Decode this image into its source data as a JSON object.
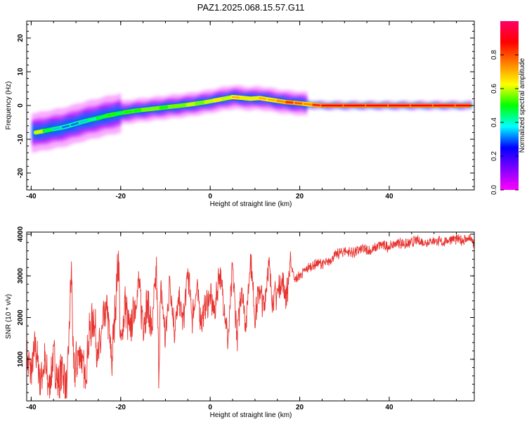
{
  "title": "PAZ1.2025.068.15.57.G11",
  "chart_data": [
    {
      "type": "heatmap",
      "xlabel": "Height of straight line (km)",
      "ylabel": "Frequency (Hz)",
      "xlim": [
        -41,
        59
      ],
      "ylim": [
        -25,
        25
      ],
      "x_ticks": [
        -40,
        -20,
        0,
        20,
        40
      ],
      "y_ticks": [
        -20,
        -10,
        0,
        10,
        20
      ],
      "ridge": {
        "x": [
          -39,
          -37,
          -35,
          -33,
          -31,
          -29,
          -27,
          -25,
          -23,
          -21,
          -19,
          -17,
          -15,
          -13,
          -11,
          -9,
          -7,
          -5,
          -3,
          -1,
          1,
          3,
          5,
          7,
          9,
          11,
          13,
          15,
          17,
          19,
          21,
          23,
          25,
          30,
          35,
          40,
          45,
          50,
          55,
          58
        ],
        "frequency": [
          -8,
          -7.5,
          -7,
          -6.5,
          -5.8,
          -5,
          -4.3,
          -3.7,
          -3,
          -2.5,
          -2,
          -1.6,
          -1.3,
          -1,
          -0.7,
          -0.4,
          -0.1,
          0.2,
          0.6,
          1,
          1.5,
          2,
          2.5,
          2.3,
          2,
          2.2,
          1.8,
          1.4,
          1,
          0.8,
          0.5,
          0.2,
          0,
          0,
          0,
          0,
          0,
          0,
          0,
          0
        ],
        "amplitude": [
          0.6,
          0.45,
          0.35,
          0.3,
          0.3,
          0.35,
          0.4,
          0.45,
          0.5,
          0.45,
          0.5,
          0.5,
          0.55,
          0.55,
          0.5,
          0.55,
          0.55,
          0.6,
          0.55,
          0.6,
          0.65,
          0.6,
          0.7,
          0.65,
          0.65,
          0.7,
          0.7,
          0.75,
          0.85,
          0.8,
          0.75,
          0.85,
          0.9,
          0.9,
          0.9,
          0.9,
          0.9,
          0.9,
          0.9,
          0.9
        ]
      },
      "colorbar": {
        "label": "Normalized spectral amplitude",
        "range": [
          0,
          1
        ],
        "ticks": [
          "0.0",
          "0.2",
          "0.4",
          "0.6",
          "0.8"
        ],
        "colors": [
          "#ff00ff",
          "#8000ff",
          "#0000ff",
          "#00ffff",
          "#00ff00",
          "#ffff00",
          "#ff8000",
          "#ff0000",
          "#ff0066"
        ]
      }
    },
    {
      "type": "line",
      "xlabel": "Height of straight line (km)",
      "ylabel": "SNR (10 * v/v)",
      "xlim": [
        -41,
        59
      ],
      "ylim": [
        0,
        4050
      ],
      "x_ticks": [
        -40,
        -20,
        0,
        20,
        40
      ],
      "y_ticks": [
        1000,
        2000,
        3000,
        4000
      ],
      "color": "#e8332f",
      "series": [
        {
          "x": [
            -41,
            -40,
            -39,
            -38,
            -37,
            -36,
            -35,
            -34,
            -33,
            -32,
            -31,
            -30.5,
            -30,
            -29,
            -28,
            -27,
            -26,
            -25,
            -24,
            -23,
            -22,
            -21,
            -20.5,
            -20,
            -19,
            -18,
            -17,
            -16,
            -15,
            -14,
            -13,
            -12,
            -11.5,
            -11,
            -10,
            -9,
            -8,
            -7,
            -6,
            -5,
            -4,
            -3,
            -2,
            -1,
            0,
            1,
            2,
            3,
            4,
            5,
            6,
            7,
            8,
            9,
            10,
            11,
            12,
            13,
            14,
            15,
            16,
            17,
            18,
            19,
            20,
            22,
            24,
            26,
            28,
            30,
            32,
            34,
            36,
            38,
            40,
            42,
            44,
            46,
            48,
            50,
            52,
            54,
            56,
            58,
            59
          ],
          "y": [
            1000,
            700,
            1300,
            500,
            900,
            300,
            1100,
            400,
            800,
            200,
            3200,
            600,
            900,
            1200,
            500,
            1600,
            2000,
            1000,
            1800,
            2200,
            900,
            2600,
            3500,
            1200,
            2400,
            1600,
            2200,
            2800,
            1900,
            2300,
            1700,
            3100,
            800,
            2700,
            1500,
            2900,
            1700,
            2400,
            1900,
            3100,
            2000,
            2700,
            1900,
            2300,
            2500,
            2100,
            3100,
            2400,
            1400,
            3200,
            1500,
            2800,
            1800,
            3500,
            2000,
            2700,
            2200,
            3300,
            2400,
            2600,
            2900,
            2500,
            3300,
            2900,
            3000,
            3200,
            3300,
            3300,
            3500,
            3600,
            3550,
            3650,
            3600,
            3750,
            3700,
            3800,
            3750,
            3850,
            3800,
            3850,
            3800,
            3900,
            3850,
            3900,
            3750
          ]
        }
      ]
    }
  ]
}
